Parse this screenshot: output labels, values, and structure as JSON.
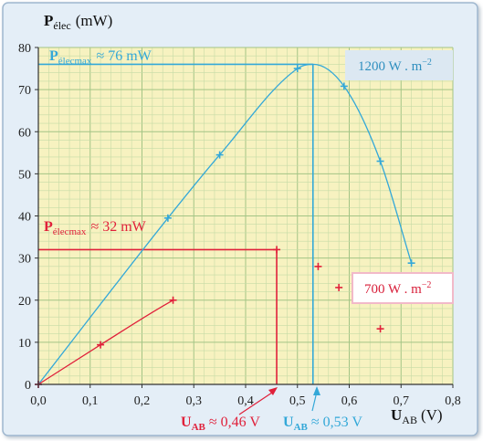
{
  "chart_data": {
    "type": "scatter",
    "ylabel": "P",
    "ylabel_sub": "élec",
    "ylabel_unit": "(mW)",
    "xlabel": "U",
    "xlabel_sub": "AB",
    "xlabel_unit": "(V)",
    "xlim": [
      0,
      0.8
    ],
    "ylim": [
      0,
      80
    ],
    "x_ticks": [
      "0,0",
      "0,1",
      "0,2",
      "0,3",
      "0,4",
      "0,5",
      "0,6",
      "0,7",
      "0,8"
    ],
    "y_ticks": [
      "0",
      "10",
      "20",
      "30",
      "40",
      "50",
      "60",
      "70",
      "80"
    ],
    "grid": true,
    "series": [
      {
        "name": "1200 W . m",
        "name_sup": "−2",
        "color": "#33a8d8",
        "x": [
          0.0,
          0.25,
          0.35,
          0.5,
          0.59,
          0.66,
          0.72
        ],
        "y": [
          0,
          39.5,
          54.5,
          75,
          70.8,
          53,
          28.8
        ],
        "max": {
          "prefix": "P",
          "sub": "élecmax",
          "text": "≈ 76 mW",
          "x": 0.53,
          "y": 76
        },
        "u_label": {
          "prefix": "U",
          "sub": "AB",
          "text": "≈ 0,53 V"
        }
      },
      {
        "name": "700 W . m",
        "name_sup": "−2",
        "color": "#e0203a",
        "x": [
          0.0,
          0.12,
          0.26,
          0.46,
          0.54,
          0.58,
          0.66
        ],
        "y": [
          0,
          9.4,
          20,
          32,
          28,
          23,
          13.2
        ],
        "max": {
          "prefix": "P",
          "sub": "élecmax",
          "text": "≈ 32 mW",
          "x": 0.46,
          "y": 32
        },
        "u_label": {
          "prefix": "U",
          "sub": "AB",
          "text": "≈ 0,46 V"
        }
      }
    ],
    "colors": {
      "plot_bg": "#f7f2c0",
      "grid_minor": "#c6dba6",
      "grid_major": "#a3c485",
      "frame_bg": "#e4eef7"
    }
  }
}
